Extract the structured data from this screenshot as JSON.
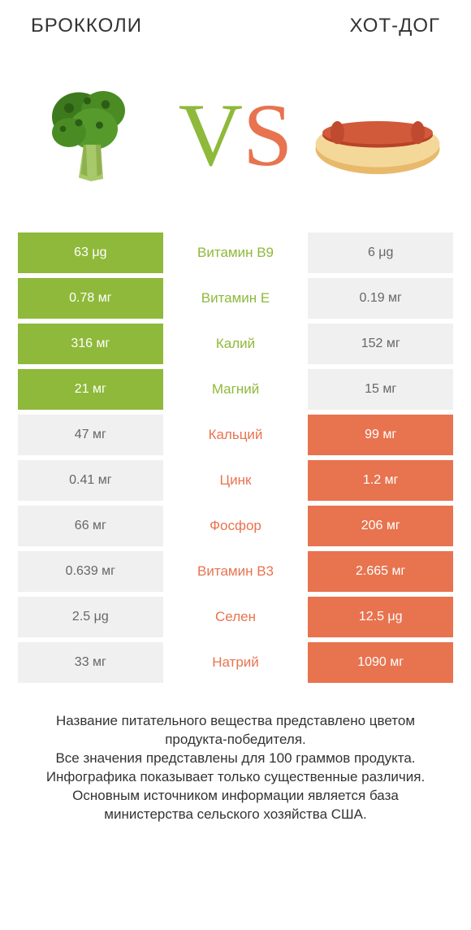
{
  "colors": {
    "left_winner": "#8fb93a",
    "right_winner": "#e8734f",
    "loser": "#f0f0f0",
    "loser_text": "#666666",
    "winner_text": "#ffffff"
  },
  "left_title": "БРОККОЛИ",
  "right_title": "ХОТ-ДОГ",
  "rows": [
    {
      "nutrient": "Витамин B9",
      "left": "63 μg",
      "right": "6 μg",
      "winner": "left"
    },
    {
      "nutrient": "Витамин E",
      "left": "0.78 мг",
      "right": "0.19 мг",
      "winner": "left"
    },
    {
      "nutrient": "Калий",
      "left": "316 мг",
      "right": "152 мг",
      "winner": "left"
    },
    {
      "nutrient": "Магний",
      "left": "21 мг",
      "right": "15 мг",
      "winner": "left"
    },
    {
      "nutrient": "Кальций",
      "left": "47 мг",
      "right": "99 мг",
      "winner": "right"
    },
    {
      "nutrient": "Цинк",
      "left": "0.41 мг",
      "right": "1.2 мг",
      "winner": "right"
    },
    {
      "nutrient": "Фосфор",
      "left": "66 мг",
      "right": "206 мг",
      "winner": "right"
    },
    {
      "nutrient": "Витамин B3",
      "left": "0.639 мг",
      "right": "2.665 мг",
      "winner": "right"
    },
    {
      "nutrient": "Селен",
      "left": "2.5 μg",
      "right": "12.5 μg",
      "winner": "right"
    },
    {
      "nutrient": "Натрий",
      "left": "33 мг",
      "right": "1090 мг",
      "winner": "right"
    }
  ],
  "footer": "Название питательного вещества представлено цветом продукта-победителя.\nВсе значения представлены для 100 граммов продукта.\nИнфографика показывает только существенные различия.\nОсновным источником информации является база министерства сельского хозяйства США."
}
